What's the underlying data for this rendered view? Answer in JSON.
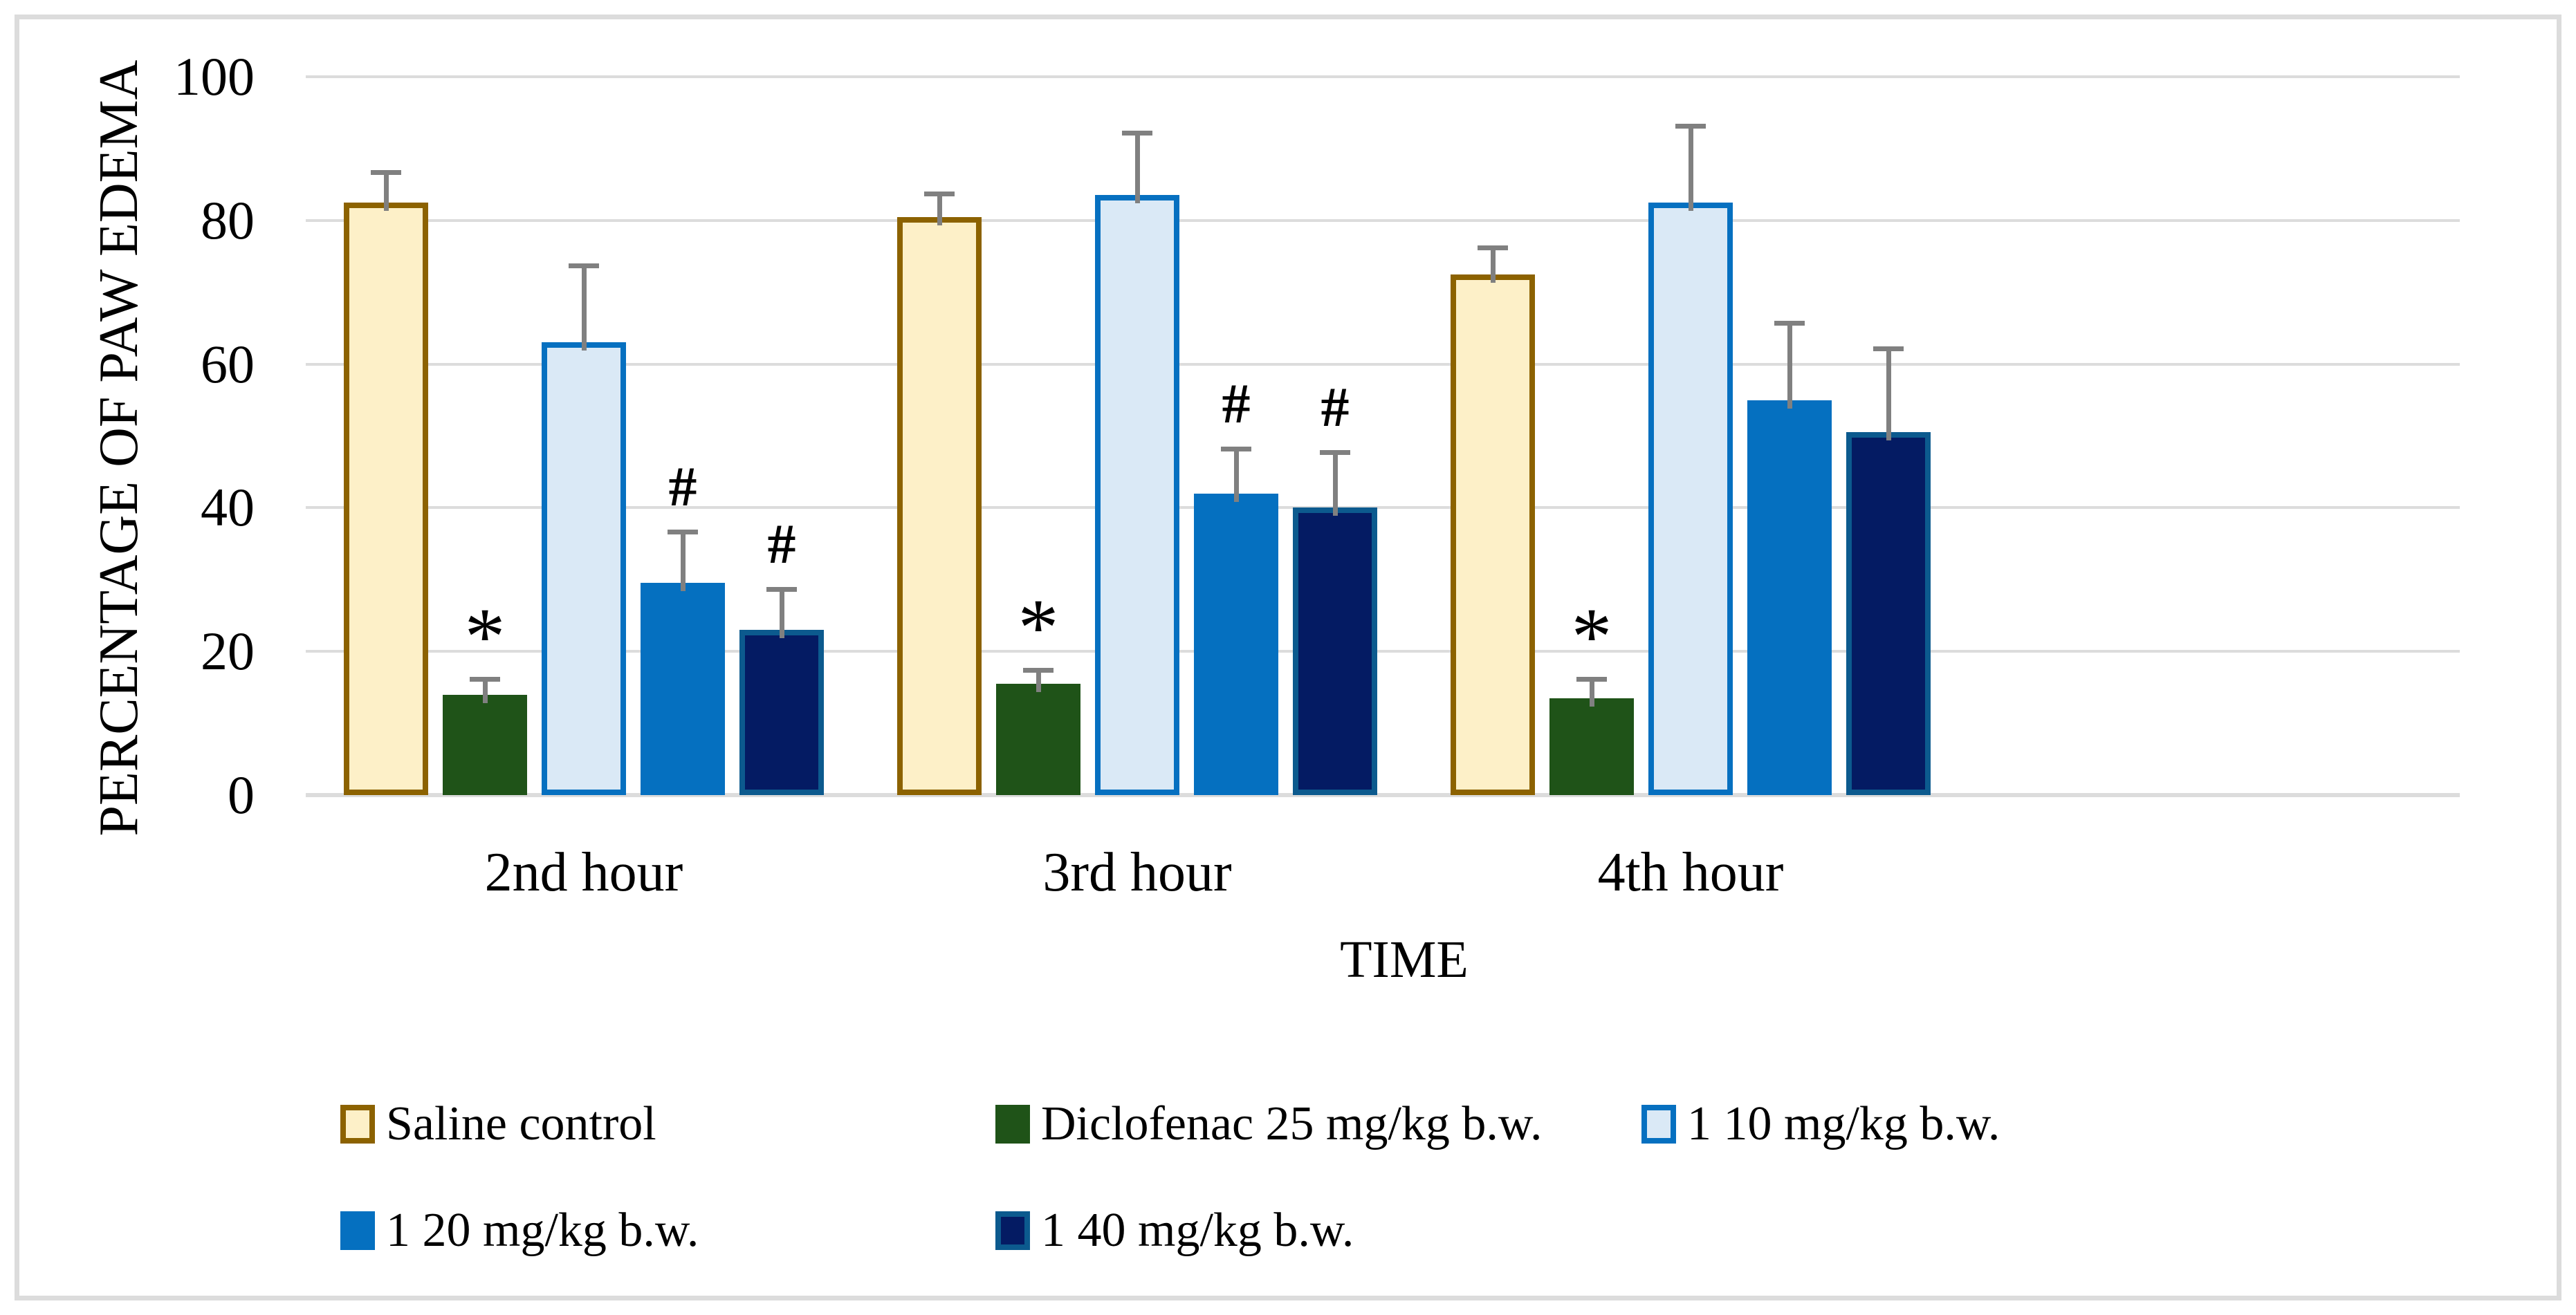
{
  "figure": {
    "background": "#FFFFFF",
    "frame_color": "#DCDCDC"
  },
  "chart_data": {
    "type": "bar",
    "title": "",
    "categories": [
      "2nd hour",
      "3rd hour",
      "4th hour"
    ],
    "series": [
      {
        "name": "Saline control",
        "fill": "#FDF0C8",
        "border": "#8C6200",
        "values": [
          82.5,
          80.5,
          72.5
        ],
        "errors": [
          4.5,
          3.5,
          4
        ],
        "annotations": [
          "",
          "",
          ""
        ]
      },
      {
        "name": "Diclofenac 25 mg/kg b.w.",
        "fill": "#1F5318",
        "border": "",
        "values": [
          14,
          15.5,
          13.5
        ],
        "errors": [
          2.5,
          2.2,
          3
        ],
        "annotations": [
          "*",
          "*",
          "*"
        ]
      },
      {
        "name": "1 10 mg/kg b.w.",
        "fill": "#DAE9F6",
        "border": "#0670C0",
        "values": [
          63,
          83.5,
          82.5
        ],
        "errors": [
          11,
          9,
          11
        ],
        "annotations": [
          "",
          "",
          ""
        ]
      },
      {
        "name": "1 20 mg/kg b.w.",
        "fill": "#0570C0",
        "border": "",
        "values": [
          29.5,
          42,
          55
        ],
        "errors": [
          7.5,
          6.5,
          11
        ],
        "annotations": [
          "#",
          "#",
          ""
        ]
      },
      {
        "name": "1 40 mg/kg b.w.",
        "fill": "#041B63",
        "border": "#0C5A8E",
        "values": [
          23,
          40,
          50.5
        ],
        "errors": [
          6,
          8,
          12
        ],
        "annotations": [
          "#",
          "#",
          ""
        ]
      }
    ],
    "ylabel": "PERCENTAGE OF PAW EDEMA",
    "xlabel": "TIME",
    "ylim": [
      0,
      100
    ],
    "yticks": [
      0,
      20,
      40,
      60,
      80,
      100
    ],
    "grid": true,
    "legend_position": "bottom",
    "gridline_color": "#DCDCDC",
    "error_bar_color": "#808080",
    "text_color": "#000000"
  }
}
